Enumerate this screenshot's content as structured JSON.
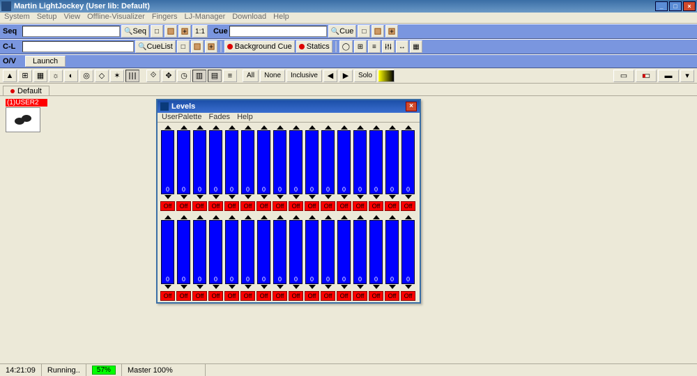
{
  "app": {
    "title": "Martin LightJockey  (User lib: Default)"
  },
  "menu": [
    "System",
    "Setup",
    "View",
    "Offline-Visualizer",
    "Fingers",
    "LJ-Manager",
    "Download",
    "Help"
  ],
  "seq": {
    "label": "Seq",
    "btn": "Seq",
    "ratio": "1:1"
  },
  "cue": {
    "label": "Cue",
    "btn": "Cue"
  },
  "cl": {
    "label": "C-L",
    "btn": "CueList",
    "bg": "Background Cue",
    "statics": "Statics"
  },
  "ov": {
    "label": "O/V",
    "launch": "Launch"
  },
  "buttons": {
    "all": "All",
    "none": "None",
    "incl": "Inclusive",
    "solo": "Solo"
  },
  "tab": "Default",
  "fixture": {
    "name": "(1)USER2"
  },
  "levels": {
    "title": "Levels",
    "menu": [
      "UserPalette",
      "Fades",
      "Help"
    ],
    "fader_value": "0",
    "off_label": "Off",
    "count_per_row": 16,
    "rows": 2,
    "colors": {
      "track": "#0000ff",
      "off": "#ff0000"
    }
  },
  "status": {
    "time": "14:21:09",
    "state": "Running..",
    "pct": "57%",
    "master": "Master  100%"
  }
}
